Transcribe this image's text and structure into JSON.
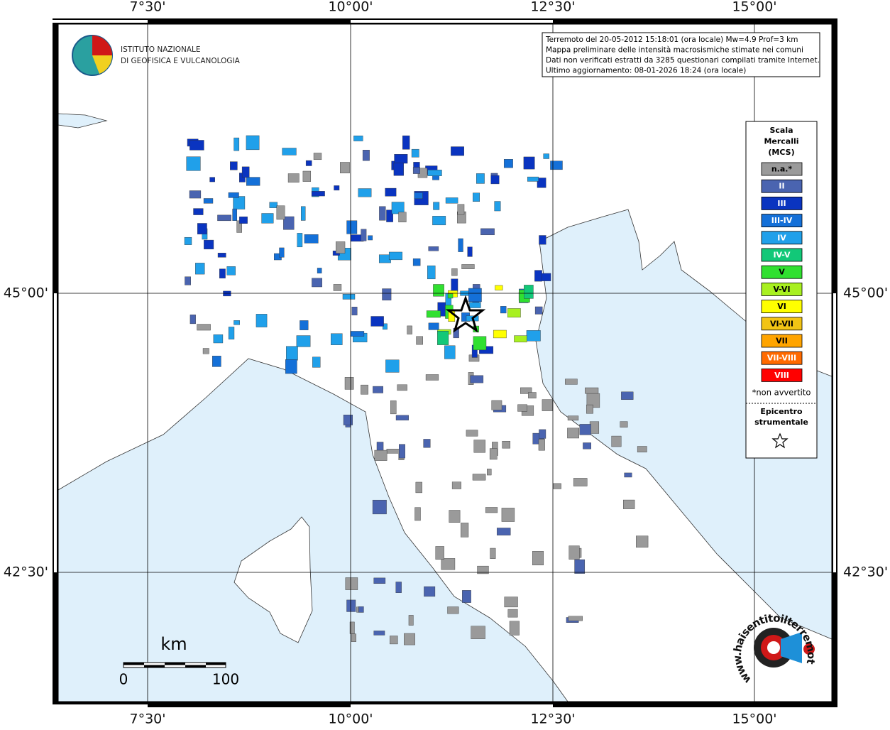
{
  "header": {
    "institute": [
      "ISTITUTO NAZIONALE",
      "DI GEOFISICA E VULCANOLOGIA"
    ]
  },
  "info": [
    "Terremoto del 20-05-2012 15:18:01 (ora locale) Mw=4.9 Prof=3 km",
    "Mappa preliminare delle intensità macrosismiche stimate nei comuni",
    "Dati non verificati estratti da 3285 questionari compilati tramite Internet.",
    "Ultimo aggiornamento: 08-01-2026 18:24 (ora locale)"
  ],
  "axes": {
    "longitudes": [
      "7°30'",
      "10°00'",
      "12°30'",
      "15°00'"
    ],
    "latitudes": [
      "45°00'",
      "42°30'"
    ]
  },
  "legend": {
    "title": [
      "Scala",
      "Mercalli",
      "(MCS)"
    ],
    "items": [
      {
        "label": "n.a.*",
        "color": "#9a9a9a"
      },
      {
        "label": "II",
        "color": "#4a64b0"
      },
      {
        "label": "III",
        "color": "#0a34c0"
      },
      {
        "label": "III-IV",
        "color": "#1470d8"
      },
      {
        "label": "IV",
        "color": "#20a0ea"
      },
      {
        "label": "IV-V",
        "color": "#12c878"
      },
      {
        "label": "V",
        "color": "#30e030"
      },
      {
        "label": "V-VI",
        "color": "#a8f020"
      },
      {
        "label": "VI",
        "color": "#ffff00"
      },
      {
        "label": "VI-VII",
        "color": "#f2c414"
      },
      {
        "label": "VII",
        "color": "#ffa400"
      },
      {
        "label": "VII-VIII",
        "color": "#ff6a00"
      },
      {
        "label": "VIII",
        "color": "#ff0000"
      }
    ],
    "note": "*non avvertito",
    "epicenter": [
      "Epicentro",
      "strumentale"
    ]
  },
  "scale_bar": {
    "unit": "km",
    "labels": [
      "0",
      "100"
    ]
  },
  "watermark": "www.haisentitoilterremoto.it"
}
